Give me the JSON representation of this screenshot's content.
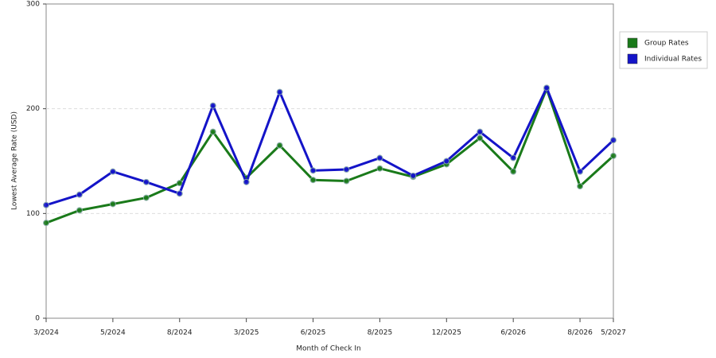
{
  "chart_data": {
    "type": "line",
    "x_label": "Month of Check In",
    "y_label": "Lowest Average Rate (USD)",
    "categories": [
      "3/2024",
      null,
      "5/2024",
      null,
      "8/2024",
      null,
      "3/2025",
      null,
      "6/2025",
      null,
      "8/2025",
      null,
      "12/2025",
      null,
      "6/2026",
      null,
      "8/2026",
      "5/2027"
    ],
    "series": [
      {
        "name": "Group Rates",
        "color": "#1a7a1a",
        "values": [
          91,
          103,
          109,
          115,
          129,
          178,
          134,
          165,
          132,
          131,
          143,
          135,
          147,
          172,
          140,
          219,
          126,
          155
        ]
      },
      {
        "name": "Individual Rates",
        "color": "#1414c8",
        "values": [
          108,
          118,
          140,
          130,
          119,
          203,
          130,
          216,
          141,
          142,
          153,
          136,
          150,
          178,
          153,
          220,
          140,
          170
        ]
      }
    ],
    "ylim": [
      0,
      300
    ],
    "yticks": [
      0,
      100,
      200,
      300
    ],
    "grid": true,
    "legend": "right"
  }
}
